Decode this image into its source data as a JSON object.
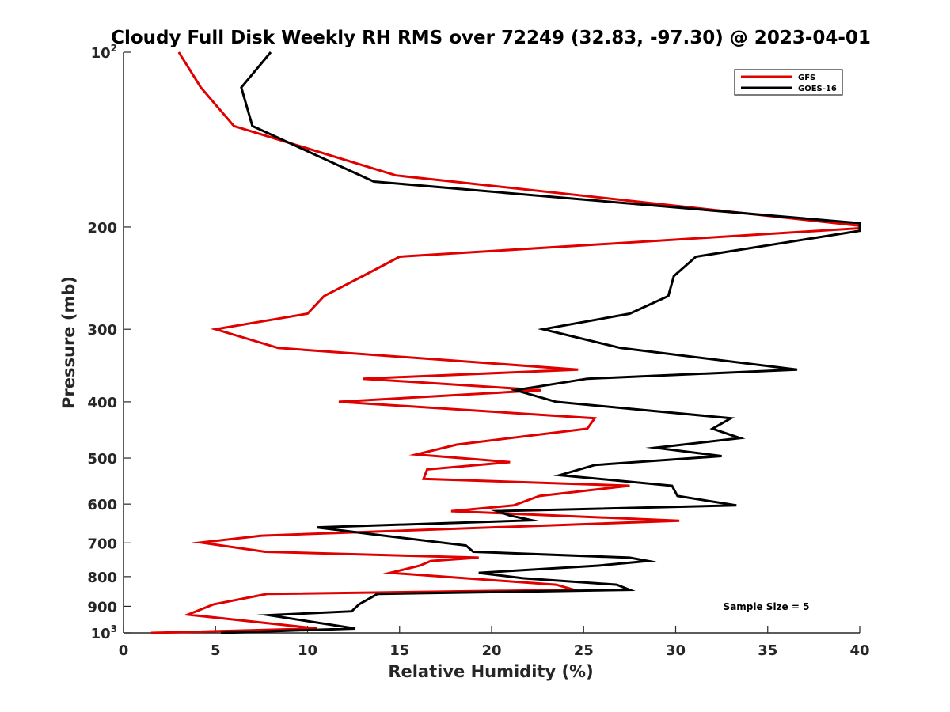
{
  "chart_data": {
    "type": "line",
    "title": "Cloudy Full Disk Weekly RH RMS over 72249 (32.83, -97.30) @ 2023-04-01",
    "xlabel": "Relative Humidity (%)",
    "ylabel": "Pressure (mb)",
    "xlim": [
      0,
      40
    ],
    "ylim": [
      100,
      1000
    ],
    "yscale": "log",
    "yreversed": true,
    "grid": false,
    "legend_position": "top-right",
    "x_ticks": [
      {
        "value": 0,
        "label": "0"
      },
      {
        "value": 5,
        "label": "5"
      },
      {
        "value": 10,
        "label": "10"
      },
      {
        "value": 15,
        "label": "15"
      },
      {
        "value": 20,
        "label": "20"
      },
      {
        "value": 25,
        "label": "25"
      },
      {
        "value": 30,
        "label": "30"
      },
      {
        "value": 35,
        "label": "35"
      },
      {
        "value": 40,
        "label": "40"
      }
    ],
    "y_ticks": [
      {
        "value": 100,
        "label": "10",
        "sup": "2"
      },
      {
        "value": 200,
        "label": "200",
        "sup": ""
      },
      {
        "value": 300,
        "label": "300",
        "sup": ""
      },
      {
        "value": 400,
        "label": "400",
        "sup": ""
      },
      {
        "value": 500,
        "label": "500",
        "sup": ""
      },
      {
        "value": 600,
        "label": "600",
        "sup": ""
      },
      {
        "value": 700,
        "label": "700",
        "sup": ""
      },
      {
        "value": 800,
        "label": "800",
        "sup": ""
      },
      {
        "value": 900,
        "label": "900",
        "sup": ""
      },
      {
        "value": 1000,
        "label": "10",
        "sup": "3"
      }
    ],
    "annotation": "Sample Size = 5",
    "series": [
      {
        "name": "GFS",
        "color": "#e00000",
        "points": [
          [
            3.0,
            100
          ],
          [
            4.2,
            115
          ],
          [
            6.0,
            134
          ],
          [
            14.8,
            163
          ],
          [
            40.0,
            199
          ],
          [
            40.0,
            201
          ],
          [
            15.0,
            225
          ],
          [
            13.0,
            243
          ],
          [
            10.9,
            263
          ],
          [
            10.0,
            282
          ],
          [
            5.0,
            300
          ],
          [
            8.4,
            323
          ],
          [
            24.7,
            352
          ],
          [
            13.0,
            365
          ],
          [
            22.7,
            382
          ],
          [
            11.7,
            400
          ],
          [
            25.6,
            427
          ],
          [
            25.2,
            445
          ],
          [
            18.1,
            474
          ],
          [
            15.9,
            493
          ],
          [
            21.0,
            508
          ],
          [
            16.5,
            523
          ],
          [
            16.3,
            543
          ],
          [
            27.5,
            558
          ],
          [
            22.6,
            581
          ],
          [
            21.2,
            603
          ],
          [
            17.8,
            617
          ],
          [
            30.2,
            641
          ],
          [
            7.5,
            680
          ],
          [
            4.2,
            699
          ],
          [
            7.7,
            725
          ],
          [
            19.3,
            742
          ],
          [
            16.7,
            752
          ],
          [
            16.1,
            766
          ],
          [
            14.5,
            788
          ],
          [
            23.5,
            826
          ],
          [
            24.5,
            843
          ],
          [
            7.8,
            857
          ],
          [
            4.9,
            893
          ],
          [
            3.5,
            930
          ],
          [
            10.5,
            983
          ],
          [
            1.5,
            1000
          ]
        ]
      },
      {
        "name": "GOES-16",
        "color": "#000000",
        "points": [
          [
            8.0,
            100
          ],
          [
            6.4,
            115
          ],
          [
            7.0,
            134
          ],
          [
            13.6,
            167
          ],
          [
            40.0,
            197
          ],
          [
            40.0,
            203
          ],
          [
            31.1,
            225
          ],
          [
            29.9,
            243
          ],
          [
            29.6,
            263
          ],
          [
            27.5,
            282
          ],
          [
            22.8,
            300
          ],
          [
            27.0,
            323
          ],
          [
            36.6,
            352
          ],
          [
            25.2,
            365
          ],
          [
            21.3,
            382
          ],
          [
            23.5,
            400
          ],
          [
            33.0,
            427
          ],
          [
            32.0,
            445
          ],
          [
            33.5,
            462
          ],
          [
            28.9,
            480
          ],
          [
            32.5,
            496
          ],
          [
            25.6,
            514
          ],
          [
            23.7,
            535
          ],
          [
            29.8,
            558
          ],
          [
            30.1,
            581
          ],
          [
            33.3,
            603
          ],
          [
            20.3,
            617
          ],
          [
            21.0,
            628
          ],
          [
            22.2,
            640
          ],
          [
            10.5,
            658
          ],
          [
            13.8,
            678
          ],
          [
            18.6,
            707
          ],
          [
            19.0,
            725
          ],
          [
            27.5,
            742
          ],
          [
            28.5,
            752
          ],
          [
            25.8,
            766
          ],
          [
            19.3,
            788
          ],
          [
            21.7,
            805
          ],
          [
            26.8,
            826
          ],
          [
            27.5,
            843
          ],
          [
            13.8,
            857
          ],
          [
            12.8,
            893
          ],
          [
            12.4,
            918
          ],
          [
            7.9,
            932
          ],
          [
            12.6,
            983
          ],
          [
            5.3,
            1000
          ]
        ]
      }
    ]
  }
}
